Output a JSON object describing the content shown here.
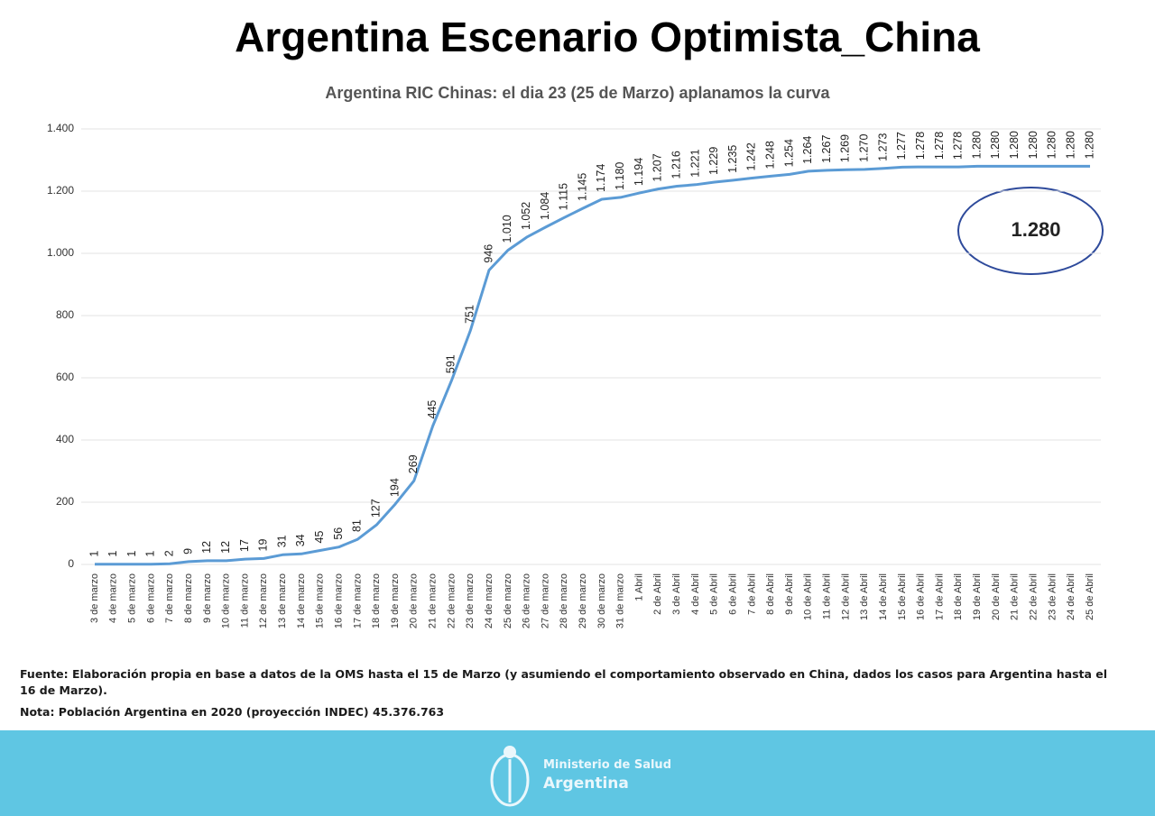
{
  "chart_data": {
    "type": "line",
    "title": "Argentina Escenario Optimista_China",
    "subtitle": "Argentina RIC Chinas: el dia 23 (25 de Marzo) aplanamos la curva",
    "categories": [
      "3 de marzo",
      "4 de marzo",
      "5 de marzo",
      "6 de marzo",
      "7 de marzo",
      "8 de marzo",
      "9 de marzo",
      "10 de marzo",
      "11 de marzo",
      "12 de marzo",
      "13 de marzo",
      "14 de marzo",
      "15 de marzo",
      "16 de marzo",
      "17 de marzo",
      "18 de marzo",
      "19 de marzo",
      "20 de marzo",
      "21 de marzo",
      "22 de marzo",
      "23 de marzo",
      "24 de marzo",
      "25 de marzo",
      "26 de marzo",
      "27 de marzo",
      "28 de marzo",
      "29 de marzo",
      "30 de marzo",
      "31 de marzo",
      "1 Abril",
      "2 de Abril",
      "3 de Abril",
      "4 de Abril",
      "5 de Abril",
      "6 de Abril",
      "7 de Abril",
      "8 de Abril",
      "9 de Abril",
      "10 de Abril",
      "11 de Abril",
      "12 de Abril",
      "13 de Abril",
      "14 de Abril",
      "15 de Abril",
      "16 de Abril",
      "17 de Abril",
      "18 de Abril",
      "19 de Abril",
      "20 de Abril",
      "21 de Abril",
      "22 de Abril",
      "23 de Abril",
      "24 de Abril",
      "25 de Abril"
    ],
    "values": [
      1,
      1,
      1,
      1,
      2,
      9,
      12,
      12,
      17,
      19,
      31,
      34,
      45,
      56,
      81,
      127,
      194,
      269,
      445,
      591,
      751,
      946,
      1010,
      1052,
      1084,
      1115,
      1145,
      1174,
      1180,
      1194,
      1207,
      1216,
      1221,
      1229,
      1235,
      1242,
      1248,
      1254,
      1264,
      1267,
      1269,
      1270,
      1273,
      1277,
      1278,
      1278,
      1278,
      1280,
      1280,
      1280,
      1280,
      1280,
      1280,
      1280
    ],
    "value_labels": [
      "1",
      "1",
      "1",
      "1",
      "2",
      "9",
      "12",
      "12",
      "17",
      "19",
      "31",
      "34",
      "45",
      "56",
      "81",
      "127",
      "194",
      "269",
      "445",
      "591",
      "751",
      "946",
      "1.010",
      "1.052",
      "1.084",
      "1.115",
      "1.145",
      "1.174",
      "1.180",
      "1.194",
      "1.207",
      "1.216",
      "1.221",
      "1.229",
      "1.235",
      "1.242",
      "1.248",
      "1.254",
      "1.264",
      "1.267",
      "1.269",
      "1.270",
      "1.273",
      "1.277",
      "1.278",
      "1.278",
      "1.278",
      "1.280",
      "1.280",
      "1.280",
      "1.280",
      "1.280",
      "1.280",
      "1.280"
    ],
    "color": "#5b9bd5",
    "ylim": [
      0,
      1400
    ],
    "yticks": [
      0,
      200,
      400,
      600,
      800,
      {
        "value": 1000,
        "label": "1.000"
      },
      {
        "value": 1200,
        "label": "1.200"
      },
      {
        "value": 1400,
        "label": "1.400"
      }
    ],
    "grid": true,
    "annotation": "1.280",
    "notes": [
      "Fuente: Elaboración propia en base a datos de la OMS hasta el 15 de Marzo (y asumiendo el comportamiento observado en China, dados los casos para Argentina hasta el 16 de Marzo).",
      "Nota: Población Argentina en 2020 (proyección INDEC) 45.376.763"
    ]
  },
  "footer": {
    "ministry": "Ministerio de Salud",
    "country": "Argentina"
  }
}
